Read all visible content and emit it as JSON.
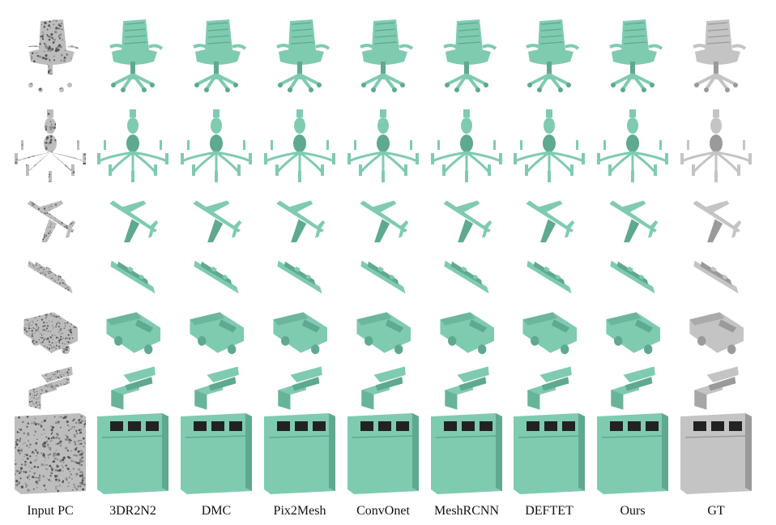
{
  "columns": [
    {
      "label": "Input PC",
      "kind": "input"
    },
    {
      "label": "3DR2N2",
      "kind": "pred"
    },
    {
      "label": "DMC",
      "kind": "pred"
    },
    {
      "label": "Pix2Mesh",
      "kind": "pred"
    },
    {
      "label": "ConvOnet",
      "kind": "pred"
    },
    {
      "label": "MeshRCNN",
      "kind": "pred"
    },
    {
      "label": "DEFTET",
      "kind": "pred"
    },
    {
      "label": "Ours",
      "kind": "pred"
    },
    {
      "label": "GT",
      "kind": "gt"
    }
  ],
  "rows": [
    "office-chair",
    "chandelier",
    "airplane",
    "watercraft",
    "pickup-truck",
    "sofa",
    "cabinet"
  ],
  "colors": {
    "prediction": "#7fcbb0",
    "prediction_shade": "#5ea98f",
    "ground_truth": "#c4c4c4",
    "ground_truth_shade": "#9a9a9a",
    "point_cloud": "#8a8a8a",
    "point_cloud_dark": "#555555",
    "hole": "#222222"
  }
}
